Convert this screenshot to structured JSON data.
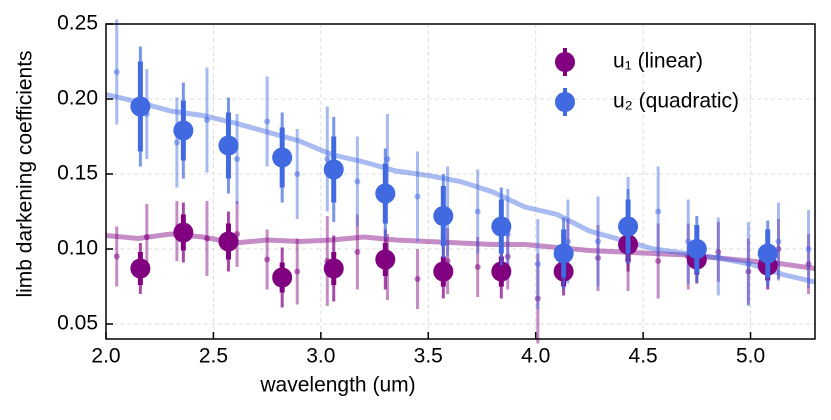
{
  "chart_data": {
    "type": "errorbar",
    "xlabel": "wavelength (um)",
    "ylabel": "limb darkening coefficients",
    "xlim": [
      2.0,
      5.3
    ],
    "ylim": [
      0.04,
      0.25
    ],
    "xticks": [
      {
        "value": 2.0,
        "label": "2.0"
      },
      2.5,
      {
        "value": 3.0,
        "label": "3.0"
      },
      3.5,
      {
        "value": 4.0,
        "label": "4.0"
      },
      4.5,
      {
        "value": 5.0,
        "label": "5.0"
      }
    ],
    "yticks": [
      0.05,
      {
        "value": 0.1,
        "label": "0.10"
      },
      0.15,
      {
        "value": 0.2,
        "label": "0.20"
      },
      0.25
    ],
    "grid": true,
    "legend": "upper right",
    "series": [
      {
        "name": "u₁ (linear)",
        "color": "#800080",
        "x": [
          2.16,
          2.36,
          2.57,
          2.82,
          3.06,
          3.3,
          3.57,
          3.84,
          4.13,
          4.43,
          4.75,
          5.08
        ],
        "values": [
          0.087,
          0.111,
          0.105,
          0.081,
          0.087,
          0.093,
          0.085,
          0.085,
          0.085,
          0.103,
          0.093,
          0.089
        ],
        "yerr_inner": [
          0.011,
          0.012,
          0.012,
          0.01,
          0.011,
          0.011,
          0.01,
          0.01,
          0.01,
          0.011,
          0.01,
          0.01
        ],
        "yerr_outer": [
          0.017,
          0.02,
          0.02,
          0.02,
          0.022,
          0.02,
          0.018,
          0.018,
          0.016,
          0.018,
          0.016,
          0.016
        ],
        "samples": {
          "x": [
            2.05,
            2.19,
            2.33,
            2.47,
            2.61,
            2.75,
            2.89,
            3.03,
            3.17,
            3.31,
            3.45,
            3.59,
            3.73,
            3.87,
            4.01,
            4.15,
            4.29,
            4.43,
            4.57,
            4.71,
            4.85,
            4.99,
            5.13,
            5.27
          ],
          "values": [
            0.095,
            0.108,
            0.112,
            0.107,
            0.11,
            0.093,
            0.085,
            0.092,
            0.098,
            0.088,
            0.08,
            0.092,
            0.088,
            0.095,
            0.067,
            0.1,
            0.094,
            0.092,
            0.092,
            0.095,
            0.098,
            0.085,
            0.1,
            0.09
          ],
          "yerr": [
            0.02,
            0.022,
            0.02,
            0.025,
            0.022,
            0.02,
            0.022,
            0.03,
            0.025,
            0.022,
            0.02,
            0.022,
            0.02,
            0.022,
            0.03,
            0.02,
            0.022,
            0.02,
            0.025,
            0.022,
            0.02,
            0.022,
            0.02,
            0.02
          ]
        },
        "model": {
          "x": [
            2.0,
            2.15,
            2.3,
            2.45,
            2.6,
            2.75,
            2.9,
            3.05,
            3.2,
            3.35,
            3.5,
            3.65,
            3.8,
            3.95,
            4.1,
            4.25,
            4.4,
            4.55,
            4.7,
            4.85,
            5.0,
            5.15,
            5.3
          ],
          "values": [
            0.109,
            0.107,
            0.11,
            0.108,
            0.104,
            0.106,
            0.105,
            0.106,
            0.108,
            0.106,
            0.105,
            0.104,
            0.103,
            0.103,
            0.101,
            0.099,
            0.098,
            0.097,
            0.096,
            0.094,
            0.092,
            0.09,
            0.087
          ]
        }
      },
      {
        "name": "u₂ (quadratic)",
        "color": "#4169e1",
        "x": [
          2.16,
          2.36,
          2.57,
          2.82,
          3.06,
          3.3,
          3.57,
          3.84,
          4.13,
          4.43,
          4.75,
          5.08
        ],
        "values": [
          0.195,
          0.179,
          0.169,
          0.161,
          0.153,
          0.137,
          0.122,
          0.115,
          0.097,
          0.115,
          0.1,
          0.097
        ],
        "yerr_inner": [
          0.03,
          0.02,
          0.022,
          0.02,
          0.022,
          0.02,
          0.02,
          0.018,
          0.016,
          0.018,
          0.016,
          0.016
        ],
        "yerr_outer": [
          0.04,
          0.032,
          0.032,
          0.03,
          0.035,
          0.03,
          0.028,
          0.026,
          0.024,
          0.025,
          0.022,
          0.022
        ],
        "samples": {
          "x": [
            2.05,
            2.19,
            2.33,
            2.47,
            2.61,
            2.75,
            2.89,
            3.03,
            3.17,
            3.31,
            3.45,
            3.59,
            3.73,
            3.87,
            4.01,
            4.15,
            4.29,
            4.43,
            4.57,
            4.71,
            4.85,
            4.99,
            5.13,
            5.27
          ],
          "values": [
            0.218,
            0.19,
            0.171,
            0.186,
            0.16,
            0.185,
            0.15,
            0.16,
            0.145,
            0.16,
            0.135,
            0.125,
            0.125,
            0.11,
            0.09,
            0.105,
            0.105,
            0.12,
            0.125,
            0.105,
            0.095,
            0.09,
            0.105,
            0.1
          ],
          "yerr": [
            0.035,
            0.03,
            0.03,
            0.035,
            0.03,
            0.03,
            0.03,
            0.035,
            0.03,
            0.03,
            0.03,
            0.03,
            0.028,
            0.03,
            0.03,
            0.028,
            0.03,
            0.028,
            0.03,
            0.028,
            0.026,
            0.028,
            0.026,
            0.026
          ]
        },
        "model": {
          "x": [
            2.0,
            2.15,
            2.3,
            2.45,
            2.6,
            2.75,
            2.9,
            3.05,
            3.2,
            3.35,
            3.5,
            3.65,
            3.8,
            3.95,
            4.1,
            4.25,
            4.4,
            4.55,
            4.7,
            4.85,
            5.0,
            5.15,
            5.3
          ],
          "values": [
            0.203,
            0.198,
            0.192,
            0.189,
            0.184,
            0.178,
            0.172,
            0.163,
            0.158,
            0.152,
            0.149,
            0.145,
            0.138,
            0.128,
            0.123,
            0.112,
            0.106,
            0.1,
            0.097,
            0.094,
            0.09,
            0.083,
            0.078
          ]
        }
      }
    ]
  }
}
